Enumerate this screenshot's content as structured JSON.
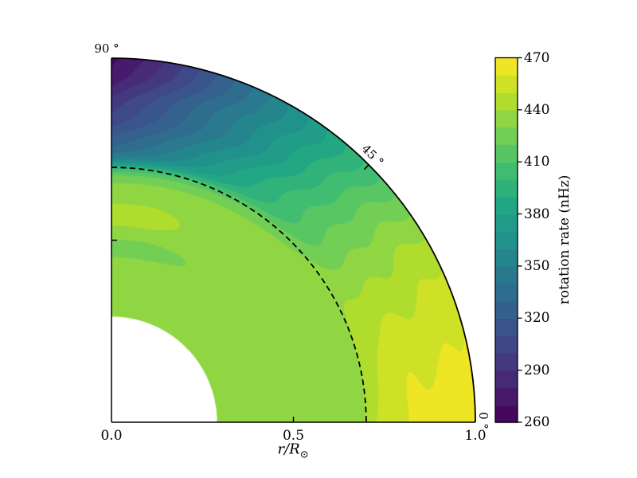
{
  "figure": {
    "background": "#ffffff"
  },
  "axes": {
    "xlabel_main": "r/R",
    "xlabel_sub": "⊙",
    "x_ticks": [
      "0.0",
      "0.5",
      "1.0"
    ],
    "angle_labels": [
      {
        "text": "90 °",
        "angle_deg": 90
      },
      {
        "text": "45 °",
        "angle_deg": 45
      },
      {
        "text": "0 °",
        "angle_deg": 0
      }
    ]
  },
  "colorbar": {
    "label": "rotation rate (nHz)",
    "ticks": [
      "470",
      "440",
      "410",
      "380",
      "350",
      "320",
      "290",
      "260"
    ]
  },
  "chart_data": {
    "type": "heatmap",
    "subtype": "polar-quadrant-filled-contour",
    "title": "",
    "xlabel": "r/R⊙",
    "colorbar_label": "rotation rate (nHz)",
    "value_units": "nHz",
    "colormap": "viridis",
    "contour_levels": {
      "min": 260,
      "max": 470,
      "step": 10
    },
    "colorbar_tick_values": [
      470,
      440,
      410,
      380,
      350,
      320,
      290,
      260
    ],
    "radial_range": [
      0.29,
      1.0
    ],
    "latitude_range_deg": [
      0,
      90
    ],
    "radius_ticks": [
      0.0,
      0.5,
      1.0
    ],
    "angle_ticks_deg": [
      0,
      45,
      90
    ],
    "tachocline_dashed_radius": 0.7,
    "interior_rotation_nhz": 433,
    "surface_rotation_profile": {
      "latitude_deg": [
        0,
        5,
        10,
        15,
        20,
        25,
        30,
        35,
        40,
        45,
        50,
        55,
        60,
        65,
        70,
        75,
        80,
        85,
        90
      ],
      "rate_nhz": [
        467,
        466,
        464,
        461,
        456,
        449,
        441,
        430,
        418,
        404,
        390,
        375,
        360,
        344,
        328,
        311,
        294,
        279,
        266
      ]
    },
    "near_axis_features": [
      {
        "radius": 0.57,
        "amplitude_nhz": 11,
        "width": 0.045,
        "note": "bright 440-450 band near rotation axis"
      },
      {
        "radius": 0.48,
        "amplitude_nhz": -9,
        "width": 0.025,
        "note": "darker 420-430 sliver near rotation axis"
      }
    ],
    "render_model": {
      "tachocline_blend": 0.45,
      "cz_radial_exponent": 0.65,
      "transition_width": 0.028,
      "wiggle_amp1": 1.7,
      "wiggle_amp2": 1.5
    },
    "viridis_stops": [
      "#440154",
      "#482475",
      "#414487",
      "#355F8D",
      "#2A788E",
      "#21918C",
      "#22A884",
      "#44BF70",
      "#7AD151",
      "#BDDF26",
      "#FDE725"
    ],
    "legend_position": "right-colorbar",
    "grid": false
  }
}
